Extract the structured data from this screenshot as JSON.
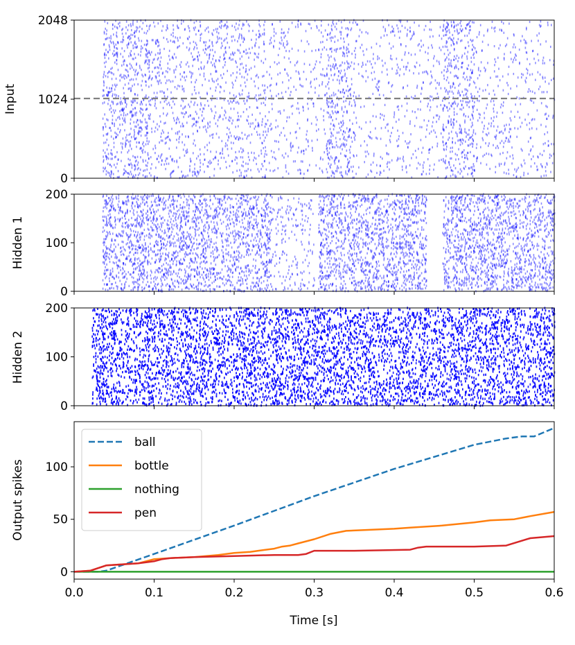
{
  "chart_data": [
    {
      "type": "scatter",
      "subtype": "raster",
      "ylabel": "Input",
      "ylim": [
        0,
        2048
      ],
      "yticks": [
        0,
        1024,
        2048
      ],
      "ytick_labels": [
        "0",
        "1024",
        "2048"
      ],
      "xlim": [
        0,
        0.6
      ],
      "marker_color": "#0000ff",
      "reference_line": {
        "y": 1024,
        "color": "#808080",
        "style": "dashed"
      },
      "activity_bursts": [
        {
          "t_start": 0.035,
          "t_end": 0.095,
          "density": "high"
        },
        {
          "t_start": 0.095,
          "t_end": 0.17,
          "density": "medium"
        },
        {
          "t_start": 0.17,
          "t_end": 0.24,
          "density": "medium"
        },
        {
          "t_start": 0.24,
          "t_end": 0.315,
          "density": "low"
        },
        {
          "t_start": 0.315,
          "t_end": 0.345,
          "density": "high"
        },
        {
          "t_start": 0.345,
          "t_end": 0.46,
          "density": "low"
        },
        {
          "t_start": 0.46,
          "t_end": 0.5,
          "density": "high"
        },
        {
          "t_start": 0.5,
          "t_end": 0.6,
          "density": "low"
        }
      ]
    },
    {
      "type": "scatter",
      "subtype": "raster",
      "ylabel": "Hidden 1",
      "ylim": [
        0,
        200
      ],
      "yticks": [
        0,
        100,
        200
      ],
      "ytick_labels": [
        "0",
        "100",
        "200"
      ],
      "xlim": [
        0,
        0.6
      ],
      "marker_color": "#0000ff",
      "activity_bursts": [
        {
          "t_start": 0.035,
          "t_end": 0.245,
          "density": "high"
        },
        {
          "t_start": 0.245,
          "t_end": 0.3,
          "density": "low"
        },
        {
          "t_start": 0.305,
          "t_end": 0.44,
          "density": "high"
        },
        {
          "t_start": 0.46,
          "t_end": 0.6,
          "density": "high"
        }
      ]
    },
    {
      "type": "scatter",
      "subtype": "raster",
      "ylabel": "Hidden 2",
      "ylim": [
        0,
        200
      ],
      "yticks": [
        0,
        100,
        200
      ],
      "ytick_labels": [
        "0",
        "100",
        "200"
      ],
      "xlim": [
        0,
        0.6
      ],
      "marker_color": "#0000ff",
      "activity_bursts": [
        {
          "t_start": 0.022,
          "t_end": 0.6,
          "density": "very high"
        }
      ]
    },
    {
      "type": "line",
      "ylabel": "Output spikes",
      "xlabel": "Time [s]",
      "xlim": [
        0,
        0.6
      ],
      "ylim": [
        -7,
        143
      ],
      "xticks": [
        0.0,
        0.1,
        0.2,
        0.3,
        0.4,
        0.5,
        0.6
      ],
      "xtick_labels": [
        "0.0",
        "0.1",
        "0.2",
        "0.3",
        "0.4",
        "0.5",
        "0.6"
      ],
      "yticks": [
        0,
        50,
        100
      ],
      "ytick_labels": [
        "0",
        "50",
        "100"
      ],
      "legend": {
        "position": "top-left",
        "entries": [
          "ball",
          "bottle",
          "nothing",
          "pen"
        ]
      },
      "series": [
        {
          "name": "ball",
          "color": "#1f77b4",
          "style": "dashed",
          "x": [
            0,
            0.03,
            0.04,
            0.1,
            0.2,
            0.3,
            0.4,
            0.5,
            0.54,
            0.56,
            0.575,
            0.6
          ],
          "y": [
            0,
            0,
            1,
            17,
            44,
            72,
            98,
            121,
            127,
            129,
            129,
            137
          ]
        },
        {
          "name": "bottle",
          "color": "#ff7f0e",
          "style": "solid",
          "x": [
            0,
            0.02,
            0.04,
            0.06,
            0.08,
            0.1,
            0.12,
            0.15,
            0.18,
            0.2,
            0.22,
            0.23,
            0.25,
            0.26,
            0.27,
            0.28,
            0.3,
            0.32,
            0.34,
            0.37,
            0.4,
            0.42,
            0.46,
            0.5,
            0.52,
            0.55,
            0.57,
            0.6
          ],
          "y": [
            0,
            1,
            6,
            7,
            8,
            12,
            13,
            14,
            16,
            18,
            19,
            20,
            22,
            24,
            25,
            27,
            31,
            36,
            39,
            40,
            41,
            42,
            44,
            47,
            49,
            50,
            53,
            57
          ]
        },
        {
          "name": "nothing",
          "color": "#2ca02c",
          "style": "solid",
          "x": [
            0,
            0.6
          ],
          "y": [
            0,
            0
          ]
        },
        {
          "name": "pen",
          "color": "#d62728",
          "style": "solid",
          "x": [
            0,
            0.02,
            0.04,
            0.06,
            0.08,
            0.1,
            0.11,
            0.12,
            0.15,
            0.2,
            0.25,
            0.28,
            0.29,
            0.3,
            0.35,
            0.42,
            0.43,
            0.44,
            0.5,
            0.54,
            0.57,
            0.6
          ],
          "y": [
            0,
            1,
            6,
            7,
            8,
            10,
            12,
            13,
            14,
            15,
            16,
            16,
            17,
            20,
            20,
            21,
            23,
            24,
            24,
            25,
            32,
            34
          ]
        }
      ]
    }
  ]
}
